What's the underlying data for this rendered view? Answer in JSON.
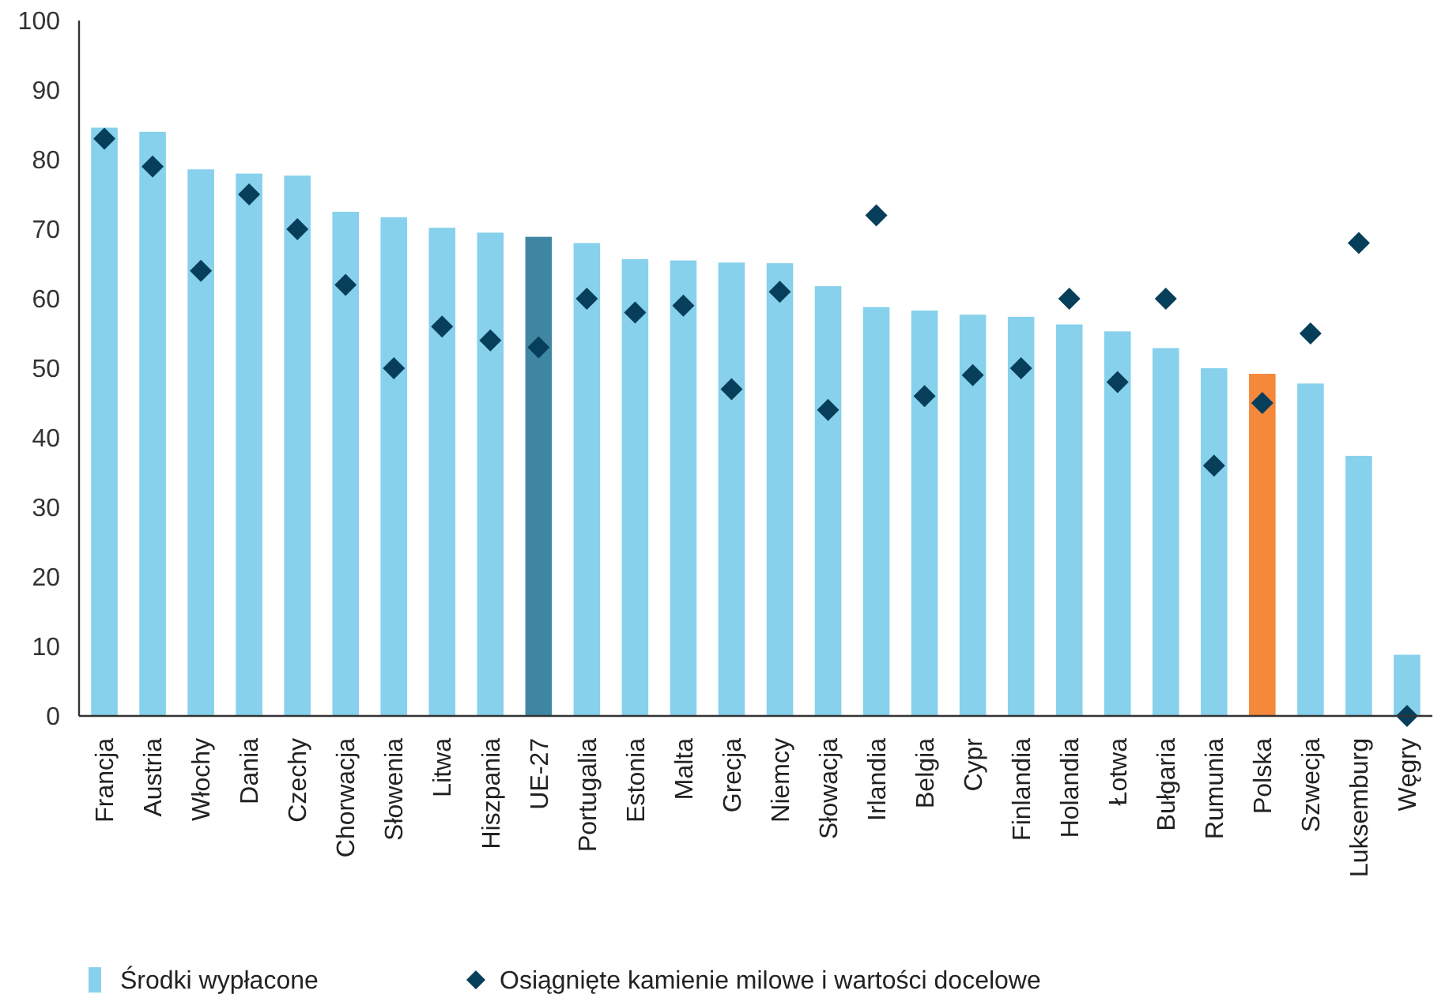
{
  "chart_data": {
    "type": "bar",
    "categories": [
      "Francja",
      "Austria",
      "Włochy",
      "Dania",
      "Czechy",
      "Chorwacja",
      "Słowenia",
      "Litwa",
      "Hiszpania",
      "UE-27",
      "Portugalia",
      "Estonia",
      "Malta",
      "Grecja",
      "Niemcy",
      "Słowacja",
      "Irlandia",
      "Belgia",
      "Cypr",
      "Finlandia",
      "Holandia",
      "Łotwa",
      "Bułgaria",
      "Rumunia",
      "Polska",
      "Szwecja",
      "Luksemburg",
      "Węgry"
    ],
    "series": [
      {
        "name": "Środki wypłacone",
        "color": "#87d1ec",
        "colors": [
          "#87d1ec",
          "#87d1ec",
          "#87d1ec",
          "#87d1ec",
          "#87d1ec",
          "#87d1ec",
          "#87d1ec",
          "#87d1ec",
          "#87d1ec",
          "#3f86a3",
          "#87d1ec",
          "#87d1ec",
          "#87d1ec",
          "#87d1ec",
          "#87d1ec",
          "#87d1ec",
          "#87d1ec",
          "#87d1ec",
          "#87d1ec",
          "#87d1ec",
          "#87d1ec",
          "#87d1ec",
          "#87d1ec",
          "#87d1ec",
          "#f5883a",
          "#87d1ec",
          "#87d1ec",
          "#87d1ec"
        ],
        "values": [
          84.6,
          84.0,
          78.6,
          78.0,
          77.7,
          72.5,
          71.7,
          70.2,
          69.5,
          68.9,
          68.0,
          65.7,
          65.5,
          65.2,
          65.1,
          61.8,
          58.8,
          58.3,
          57.7,
          57.4,
          56.3,
          55.3,
          52.9,
          50.0,
          49.2,
          47.8,
          37.4,
          8.8
        ]
      },
      {
        "type": "scatter",
        "name": "Osiągnięte kamienie milowe i wartości docelowe",
        "color": "#073f5a",
        "marker": "diamond",
        "x": [
          "Francja",
          "Austria",
          "Włochy",
          "Dania",
          "Czechy",
          "Chorwacja",
          "Słowenia",
          "Litwa",
          "Hiszpania",
          "UE-27",
          "Portugalia",
          "Estonia",
          "Malta",
          "Grecja",
          "Niemcy",
          "Słowacja",
          "Irlandia",
          "Belgia",
          "Cypr",
          "Finlandia",
          "Holandia",
          "Łotwa",
          "Bułgaria",
          "Rumunia",
          "Polska",
          "Szwecja",
          "Luksemburg",
          "Węgry"
        ],
        "values": [
          83,
          79,
          64,
          75,
          70,
          62,
          50,
          56,
          54,
          53,
          60,
          58,
          59,
          47,
          61,
          44,
          72,
          46,
          49,
          50,
          60,
          48,
          60,
          36,
          45,
          55,
          68,
          0
        ]
      }
    ],
    "ylim": [
      0,
      100
    ],
    "yticks": [
      0,
      10,
      20,
      30,
      40,
      50,
      60,
      70,
      80,
      90,
      100
    ],
    "grid": false,
    "legend": "bottom left"
  }
}
